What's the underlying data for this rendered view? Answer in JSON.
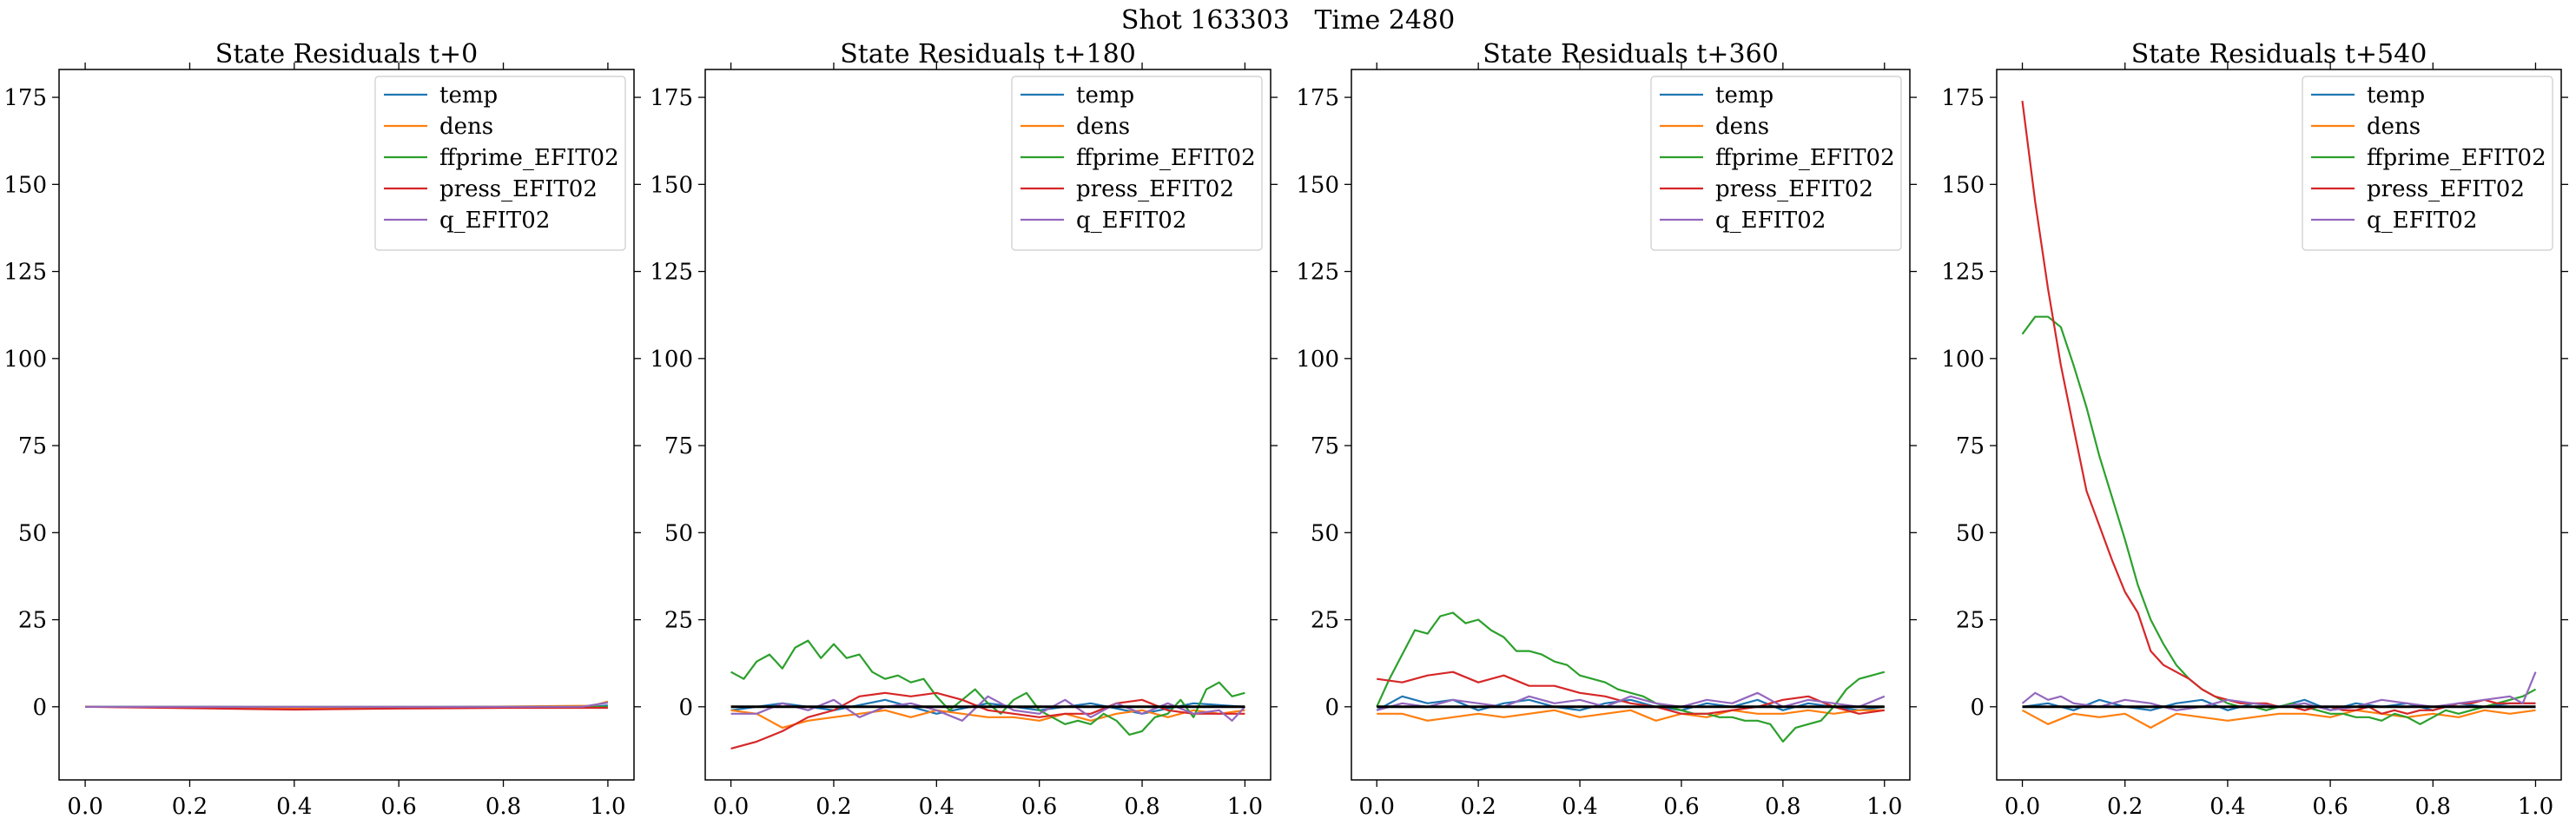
{
  "figure": {
    "suptitle": "Shot 163303   Time 2480"
  },
  "chart_data": [
    {
      "type": "line",
      "title": "State Residuals t+0",
      "xlabel": "",
      "ylabel": "",
      "xlim": [
        -0.05,
        1.05
      ],
      "ylim": [
        -21,
        183
      ],
      "xticks": [
        "0.0",
        "0.2",
        "0.4",
        "0.6",
        "0.8",
        "1.0"
      ],
      "yticks": [
        "0",
        "25",
        "50",
        "75",
        "100",
        "125",
        "150",
        "175"
      ],
      "legend": "top-right",
      "series": [
        {
          "name": "temp",
          "color": "#1f77b4",
          "x": [
            0,
            0.25,
            0.5,
            0.75,
            0.97,
            1.0
          ],
          "y": [
            0,
            0,
            -0.3,
            0,
            0,
            0.4
          ]
        },
        {
          "name": "dens",
          "color": "#ff7f0e",
          "x": [
            0,
            0.25,
            0.5,
            0.75,
            0.97,
            1.0
          ],
          "y": [
            0,
            -0.3,
            -0.3,
            0,
            0.3,
            1.5
          ]
        },
        {
          "name": "ffprime_EFIT02",
          "color": "#2ca02c",
          "x": [
            0,
            0.25,
            0.5,
            0.75,
            1.0
          ],
          "y": [
            0,
            0,
            0,
            0,
            0
          ]
        },
        {
          "name": "press_EFIT02",
          "color": "#d62728",
          "x": [
            0,
            0.25,
            0.4,
            0.6,
            0.8,
            1.0
          ],
          "y": [
            0,
            -0.5,
            -0.8,
            -0.5,
            -0.3,
            -0.3
          ]
        },
        {
          "name": "q_EFIT02",
          "color": "#9467bd",
          "x": [
            0,
            0.5,
            0.95,
            1.0
          ],
          "y": [
            0,
            0,
            0,
            1.2
          ]
        }
      ]
    },
    {
      "type": "line",
      "title": "State Residuals t+180",
      "xlabel": "",
      "ylabel": "",
      "xlim": [
        -0.05,
        1.05
      ],
      "ylim": [
        -21,
        183
      ],
      "xticks": [
        "0.0",
        "0.2",
        "0.4",
        "0.6",
        "0.8",
        "1.0"
      ],
      "yticks": [
        "0",
        "25",
        "50",
        "75",
        "100",
        "125",
        "150",
        "175"
      ],
      "legend": "top-right",
      "series": [
        {
          "name": "temp",
          "color": "#1f77b4",
          "x": [
            0,
            0.1,
            0.2,
            0.3,
            0.4,
            0.5,
            0.6,
            0.7,
            0.8,
            0.9,
            1.0
          ],
          "y": [
            -1,
            1,
            -1,
            2,
            -2,
            1,
            -1,
            1,
            -2,
            1,
            0
          ]
        },
        {
          "name": "dens",
          "color": "#ff7f0e",
          "x": [
            0,
            0.05,
            0.1,
            0.15,
            0.2,
            0.25,
            0.3,
            0.35,
            0.4,
            0.45,
            0.5,
            0.55,
            0.6,
            0.65,
            0.7,
            0.75,
            0.8,
            0.85,
            0.9,
            0.95,
            1.0
          ],
          "y": [
            -1,
            -2,
            -6,
            -4,
            -3,
            -2,
            -1,
            -3,
            -1,
            -2,
            -3,
            -3,
            -4,
            -2,
            -4,
            -2,
            -1,
            -3,
            -1,
            -2,
            -1
          ]
        },
        {
          "name": "ffprime_EFIT02",
          "color": "#2ca02c",
          "x": [
            0,
            0.025,
            0.05,
            0.075,
            0.1,
            0.125,
            0.15,
            0.175,
            0.2,
            0.225,
            0.25,
            0.275,
            0.3,
            0.325,
            0.35,
            0.375,
            0.4,
            0.425,
            0.45,
            0.475,
            0.5,
            0.525,
            0.55,
            0.575,
            0.6,
            0.625,
            0.65,
            0.675,
            0.7,
            0.725,
            0.75,
            0.775,
            0.8,
            0.825,
            0.85,
            0.875,
            0.9,
            0.925,
            0.95,
            0.975,
            1.0
          ],
          "y": [
            10,
            8,
            13,
            15,
            11,
            17,
            19,
            14,
            18,
            14,
            15,
            10,
            8,
            9,
            7,
            8,
            3,
            -1,
            2,
            5,
            1,
            -2,
            2,
            4,
            -1,
            -3,
            -5,
            -4,
            -5,
            -2,
            -4,
            -8,
            -7,
            -3,
            -2,
            2,
            -3,
            5,
            7,
            3,
            4
          ]
        },
        {
          "name": "press_EFIT02",
          "color": "#d62728",
          "x": [
            0,
            0.05,
            0.1,
            0.15,
            0.2,
            0.25,
            0.3,
            0.35,
            0.4,
            0.45,
            0.5,
            0.55,
            0.6,
            0.65,
            0.7,
            0.75,
            0.8,
            0.85,
            0.9,
            0.95,
            1.0
          ],
          "y": [
            -12,
            -10,
            -7,
            -3,
            -1,
            3,
            4,
            3,
            4,
            2,
            -1,
            -2,
            -3,
            -2,
            -2,
            1,
            2,
            -1,
            -2,
            -2,
            -2
          ]
        },
        {
          "name": "q_EFIT02",
          "color": "#9467bd",
          "x": [
            0,
            0.05,
            0.1,
            0.15,
            0.2,
            0.25,
            0.3,
            0.35,
            0.4,
            0.45,
            0.5,
            0.55,
            0.6,
            0.65,
            0.7,
            0.75,
            0.8,
            0.85,
            0.9,
            0.95,
            0.975,
            1.0
          ],
          "y": [
            -2,
            -2,
            1,
            -1,
            2,
            -3,
            0,
            1,
            -1,
            -4,
            3,
            -1,
            -2,
            2,
            -3,
            1,
            -2,
            1,
            -2,
            -1,
            -4,
            0
          ]
        },
        {
          "name": "",
          "color": "#000000",
          "x": [
            0,
            1.0
          ],
          "y": [
            0,
            0
          ]
        }
      ]
    },
    {
      "type": "line",
      "title": "State Residuals t+360",
      "xlabel": "",
      "ylabel": "",
      "xlim": [
        -0.05,
        1.05
      ],
      "ylim": [
        -21,
        183
      ],
      "xticks": [
        "0.0",
        "0.2",
        "0.4",
        "0.6",
        "0.8",
        "1.0"
      ],
      "yticks": [
        "0",
        "25",
        "50",
        "75",
        "100",
        "125",
        "150",
        "175"
      ],
      "legend": "top-right",
      "series": [
        {
          "name": "temp",
          "color": "#1f77b4",
          "x": [
            0,
            0.05,
            0.1,
            0.15,
            0.2,
            0.25,
            0.3,
            0.35,
            0.4,
            0.45,
            0.5,
            0.55,
            0.6,
            0.65,
            0.7,
            0.75,
            0.8,
            0.85,
            0.9,
            0.95,
            1.0
          ],
          "y": [
            -1,
            3,
            1,
            2,
            -1,
            1,
            2,
            0,
            -1,
            1,
            2,
            0,
            -1,
            1,
            0,
            2,
            -1,
            1,
            0,
            -1,
            0
          ]
        },
        {
          "name": "dens",
          "color": "#ff7f0e",
          "x": [
            0,
            0.05,
            0.1,
            0.15,
            0.2,
            0.25,
            0.3,
            0.35,
            0.4,
            0.45,
            0.5,
            0.55,
            0.6,
            0.65,
            0.7,
            0.75,
            0.8,
            0.85,
            0.9,
            0.95,
            1.0
          ],
          "y": [
            -2,
            -2,
            -4,
            -3,
            -2,
            -3,
            -2,
            -1,
            -3,
            -2,
            -1,
            -4,
            -2,
            -3,
            -1,
            -2,
            -2,
            -1,
            -2,
            -1,
            -1
          ]
        },
        {
          "name": "ffprime_EFIT02",
          "color": "#2ca02c",
          "x": [
            0,
            0.025,
            0.05,
            0.075,
            0.1,
            0.125,
            0.15,
            0.175,
            0.2,
            0.225,
            0.25,
            0.275,
            0.3,
            0.325,
            0.35,
            0.375,
            0.4,
            0.425,
            0.45,
            0.475,
            0.5,
            0.525,
            0.55,
            0.575,
            0.6,
            0.625,
            0.65,
            0.675,
            0.7,
            0.725,
            0.75,
            0.775,
            0.8,
            0.825,
            0.85,
            0.875,
            0.9,
            0.925,
            0.95,
            0.975,
            1.0
          ],
          "y": [
            0,
            8,
            15,
            22,
            21,
            26,
            27,
            24,
            25,
            22,
            20,
            16,
            16,
            15,
            13,
            12,
            9,
            8,
            7,
            5,
            4,
            3,
            1,
            0,
            -1,
            -2,
            -2,
            -3,
            -3,
            -4,
            -4,
            -5,
            -10,
            -6,
            -5,
            -4,
            0,
            5,
            8,
            9,
            10
          ]
        },
        {
          "name": "press_EFIT02",
          "color": "#d62728",
          "x": [
            0,
            0.05,
            0.1,
            0.15,
            0.2,
            0.25,
            0.3,
            0.35,
            0.4,
            0.45,
            0.5,
            0.55,
            0.6,
            0.65,
            0.7,
            0.75,
            0.8,
            0.85,
            0.9,
            0.95,
            1.0
          ],
          "y": [
            8,
            7,
            9,
            10,
            7,
            9,
            6,
            6,
            4,
            3,
            1,
            0,
            -2,
            -2,
            -1,
            0,
            2,
            3,
            0,
            -2,
            -1
          ]
        },
        {
          "name": "q_EFIT02",
          "color": "#9467bd",
          "x": [
            0,
            0.05,
            0.1,
            0.15,
            0.2,
            0.25,
            0.3,
            0.35,
            0.4,
            0.45,
            0.5,
            0.55,
            0.6,
            0.65,
            0.7,
            0.75,
            0.8,
            0.85,
            0.9,
            0.95,
            1.0
          ],
          "y": [
            -1,
            1,
            0,
            2,
            1,
            0,
            3,
            1,
            2,
            0,
            3,
            1,
            0,
            2,
            1,
            4,
            0,
            2,
            1,
            0,
            3
          ]
        },
        {
          "name": "",
          "color": "#000000",
          "x": [
            0,
            1.0
          ],
          "y": [
            0,
            0
          ]
        }
      ]
    },
    {
      "type": "line",
      "title": "State Residuals t+540",
      "xlabel": "",
      "ylabel": "",
      "xlim": [
        -0.05,
        1.05
      ],
      "ylim": [
        -21,
        183
      ],
      "xticks": [
        "0.0",
        "0.2",
        "0.4",
        "0.6",
        "0.8",
        "1.0"
      ],
      "yticks": [
        "0",
        "25",
        "50",
        "75",
        "100",
        "125",
        "150",
        "175"
      ],
      "legend": "top-right",
      "series": [
        {
          "name": "temp",
          "color": "#1f77b4",
          "x": [
            0,
            0.05,
            0.1,
            0.15,
            0.2,
            0.25,
            0.3,
            0.35,
            0.4,
            0.45,
            0.5,
            0.55,
            0.6,
            0.65,
            0.7,
            0.75,
            0.8,
            0.85,
            0.9,
            0.95,
            1.0
          ],
          "y": [
            0,
            1,
            -1,
            2,
            0,
            -1,
            1,
            2,
            -1,
            1,
            0,
            2,
            -1,
            1,
            0,
            1,
            -1,
            1,
            0,
            1,
            1
          ]
        },
        {
          "name": "dens",
          "color": "#ff7f0e",
          "x": [
            0,
            0.05,
            0.1,
            0.15,
            0.2,
            0.25,
            0.3,
            0.35,
            0.4,
            0.45,
            0.5,
            0.55,
            0.6,
            0.65,
            0.7,
            0.75,
            0.8,
            0.85,
            0.9,
            0.95,
            1.0
          ],
          "y": [
            -1,
            -5,
            -2,
            -3,
            -2,
            -6,
            -2,
            -3,
            -4,
            -3,
            -2,
            -2,
            -3,
            -1,
            -2,
            -3,
            -2,
            -3,
            -1,
            -2,
            -1
          ]
        },
        {
          "name": "ffprime_EFIT02",
          "color": "#2ca02c",
          "x": [
            0,
            0.025,
            0.05,
            0.075,
            0.1,
            0.125,
            0.15,
            0.175,
            0.2,
            0.225,
            0.25,
            0.275,
            0.3,
            0.325,
            0.35,
            0.375,
            0.4,
            0.425,
            0.45,
            0.475,
            0.5,
            0.525,
            0.55,
            0.575,
            0.6,
            0.625,
            0.65,
            0.675,
            0.7,
            0.725,
            0.75,
            0.775,
            0.8,
            0.825,
            0.85,
            0.875,
            0.9,
            0.925,
            0.95,
            0.975,
            1.0
          ],
          "y": [
            107,
            112,
            112,
            109,
            98,
            86,
            72,
            60,
            48,
            35,
            25,
            18,
            12,
            8,
            5,
            3,
            1,
            0,
            0,
            -1,
            0,
            1,
            0,
            -1,
            -2,
            -2,
            -3,
            -3,
            -4,
            -2,
            -3,
            -5,
            -3,
            -1,
            -2,
            -1,
            0,
            1,
            2,
            3,
            5
          ]
        },
        {
          "name": "press_EFIT02",
          "color": "#d62728",
          "x": [
            0,
            0.025,
            0.05,
            0.075,
            0.1,
            0.125,
            0.15,
            0.175,
            0.2,
            0.225,
            0.25,
            0.275,
            0.3,
            0.325,
            0.35,
            0.375,
            0.4,
            0.425,
            0.45,
            0.475,
            0.5,
            0.525,
            0.55,
            0.575,
            0.6,
            0.625,
            0.65,
            0.675,
            0.7,
            0.725,
            0.75,
            0.775,
            0.8,
            0.825,
            0.85,
            0.875,
            0.9,
            0.925,
            0.95,
            0.975,
            1.0
          ],
          "y": [
            174,
            145,
            120,
            98,
            80,
            62,
            52,
            42,
            33,
            27,
            16,
            12,
            10,
            8,
            5,
            3,
            2,
            1,
            1,
            1,
            0,
            0,
            -1,
            0,
            0,
            -1,
            -1,
            0,
            -2,
            -1,
            -2,
            -1,
            -1,
            0,
            1,
            1,
            2,
            1,
            1,
            1,
            1
          ]
        },
        {
          "name": "q_EFIT02",
          "color": "#9467bd",
          "x": [
            0,
            0.025,
            0.05,
            0.075,
            0.1,
            0.15,
            0.2,
            0.25,
            0.3,
            0.35,
            0.4,
            0.45,
            0.5,
            0.55,
            0.6,
            0.65,
            0.7,
            0.75,
            0.8,
            0.85,
            0.9,
            0.95,
            0.975,
            1.0
          ],
          "y": [
            1,
            4,
            2,
            3,
            1,
            0,
            2,
            1,
            -1,
            0,
            2,
            1,
            0,
            1,
            -1,
            0,
            2,
            1,
            0,
            1,
            2,
            3,
            1,
            10
          ]
        },
        {
          "name": "",
          "color": "#000000",
          "x": [
            0,
            1.0
          ],
          "y": [
            0,
            0
          ]
        }
      ]
    }
  ]
}
